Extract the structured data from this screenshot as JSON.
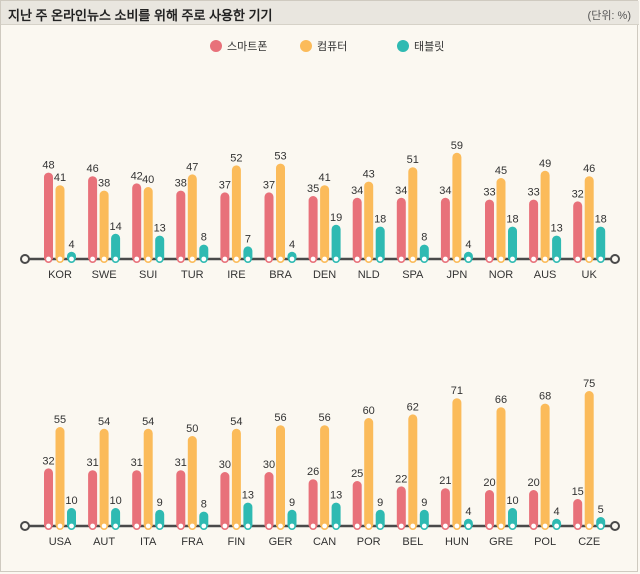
{
  "header": {
    "title": "지난 주 온라인뉴스 소비를 위해 주로 사용한 기기",
    "unit": "(단위: %)"
  },
  "colors": {
    "smartphone": "#e8717a",
    "computer": "#fbbb5a",
    "tablet": "#2fbab2",
    "axis": "#4a4a4a"
  },
  "chart_data": {
    "type": "bar",
    "title": "지난 주 온라인뉴스 소비를 위해 주로 사용한 기기",
    "unit": "(단위: %)",
    "ylim": [
      0,
      80
    ],
    "legend_position": "top-center",
    "legend": [
      "스마트폰",
      "컴퓨터",
      "태블릿"
    ],
    "panels": [
      {
        "categories": [
          "KOR",
          "SWE",
          "SUI",
          "TUR",
          "IRE",
          "BRA",
          "DEN",
          "NLD",
          "SPA",
          "JPN",
          "NOR",
          "AUS",
          "UK"
        ],
        "series": [
          {
            "name": "스마트폰",
            "values": [
              48,
              46,
              42,
              38,
              37,
              37,
              35,
              34,
              34,
              34,
              33,
              33,
              32
            ]
          },
          {
            "name": "컴퓨터",
            "values": [
              41,
              38,
              40,
              47,
              52,
              53,
              41,
              43,
              51,
              59,
              45,
              49,
              46
            ]
          },
          {
            "name": "태블릿",
            "values": [
              4,
              14,
              13,
              8,
              7,
              4,
              19,
              18,
              8,
              4,
              18,
              13,
              18
            ]
          }
        ]
      },
      {
        "categories": [
          "USA",
          "AUT",
          "ITA",
          "FRA",
          "FIN",
          "GER",
          "CAN",
          "POR",
          "BEL",
          "HUN",
          "GRE",
          "POL",
          "CZE"
        ],
        "series": [
          {
            "name": "스마트폰",
            "values": [
              32,
              31,
              31,
              31,
              30,
              30,
              26,
              25,
              22,
              21,
              20,
              20,
              15
            ]
          },
          {
            "name": "컴퓨터",
            "values": [
              55,
              54,
              54,
              50,
              54,
              56,
              56,
              60,
              62,
              71,
              66,
              68,
              75
            ]
          },
          {
            "name": "태블릿",
            "values": [
              10,
              10,
              9,
              8,
              13,
              9,
              13,
              9,
              9,
              4,
              10,
              4,
              5
            ]
          }
        ]
      }
    ]
  }
}
